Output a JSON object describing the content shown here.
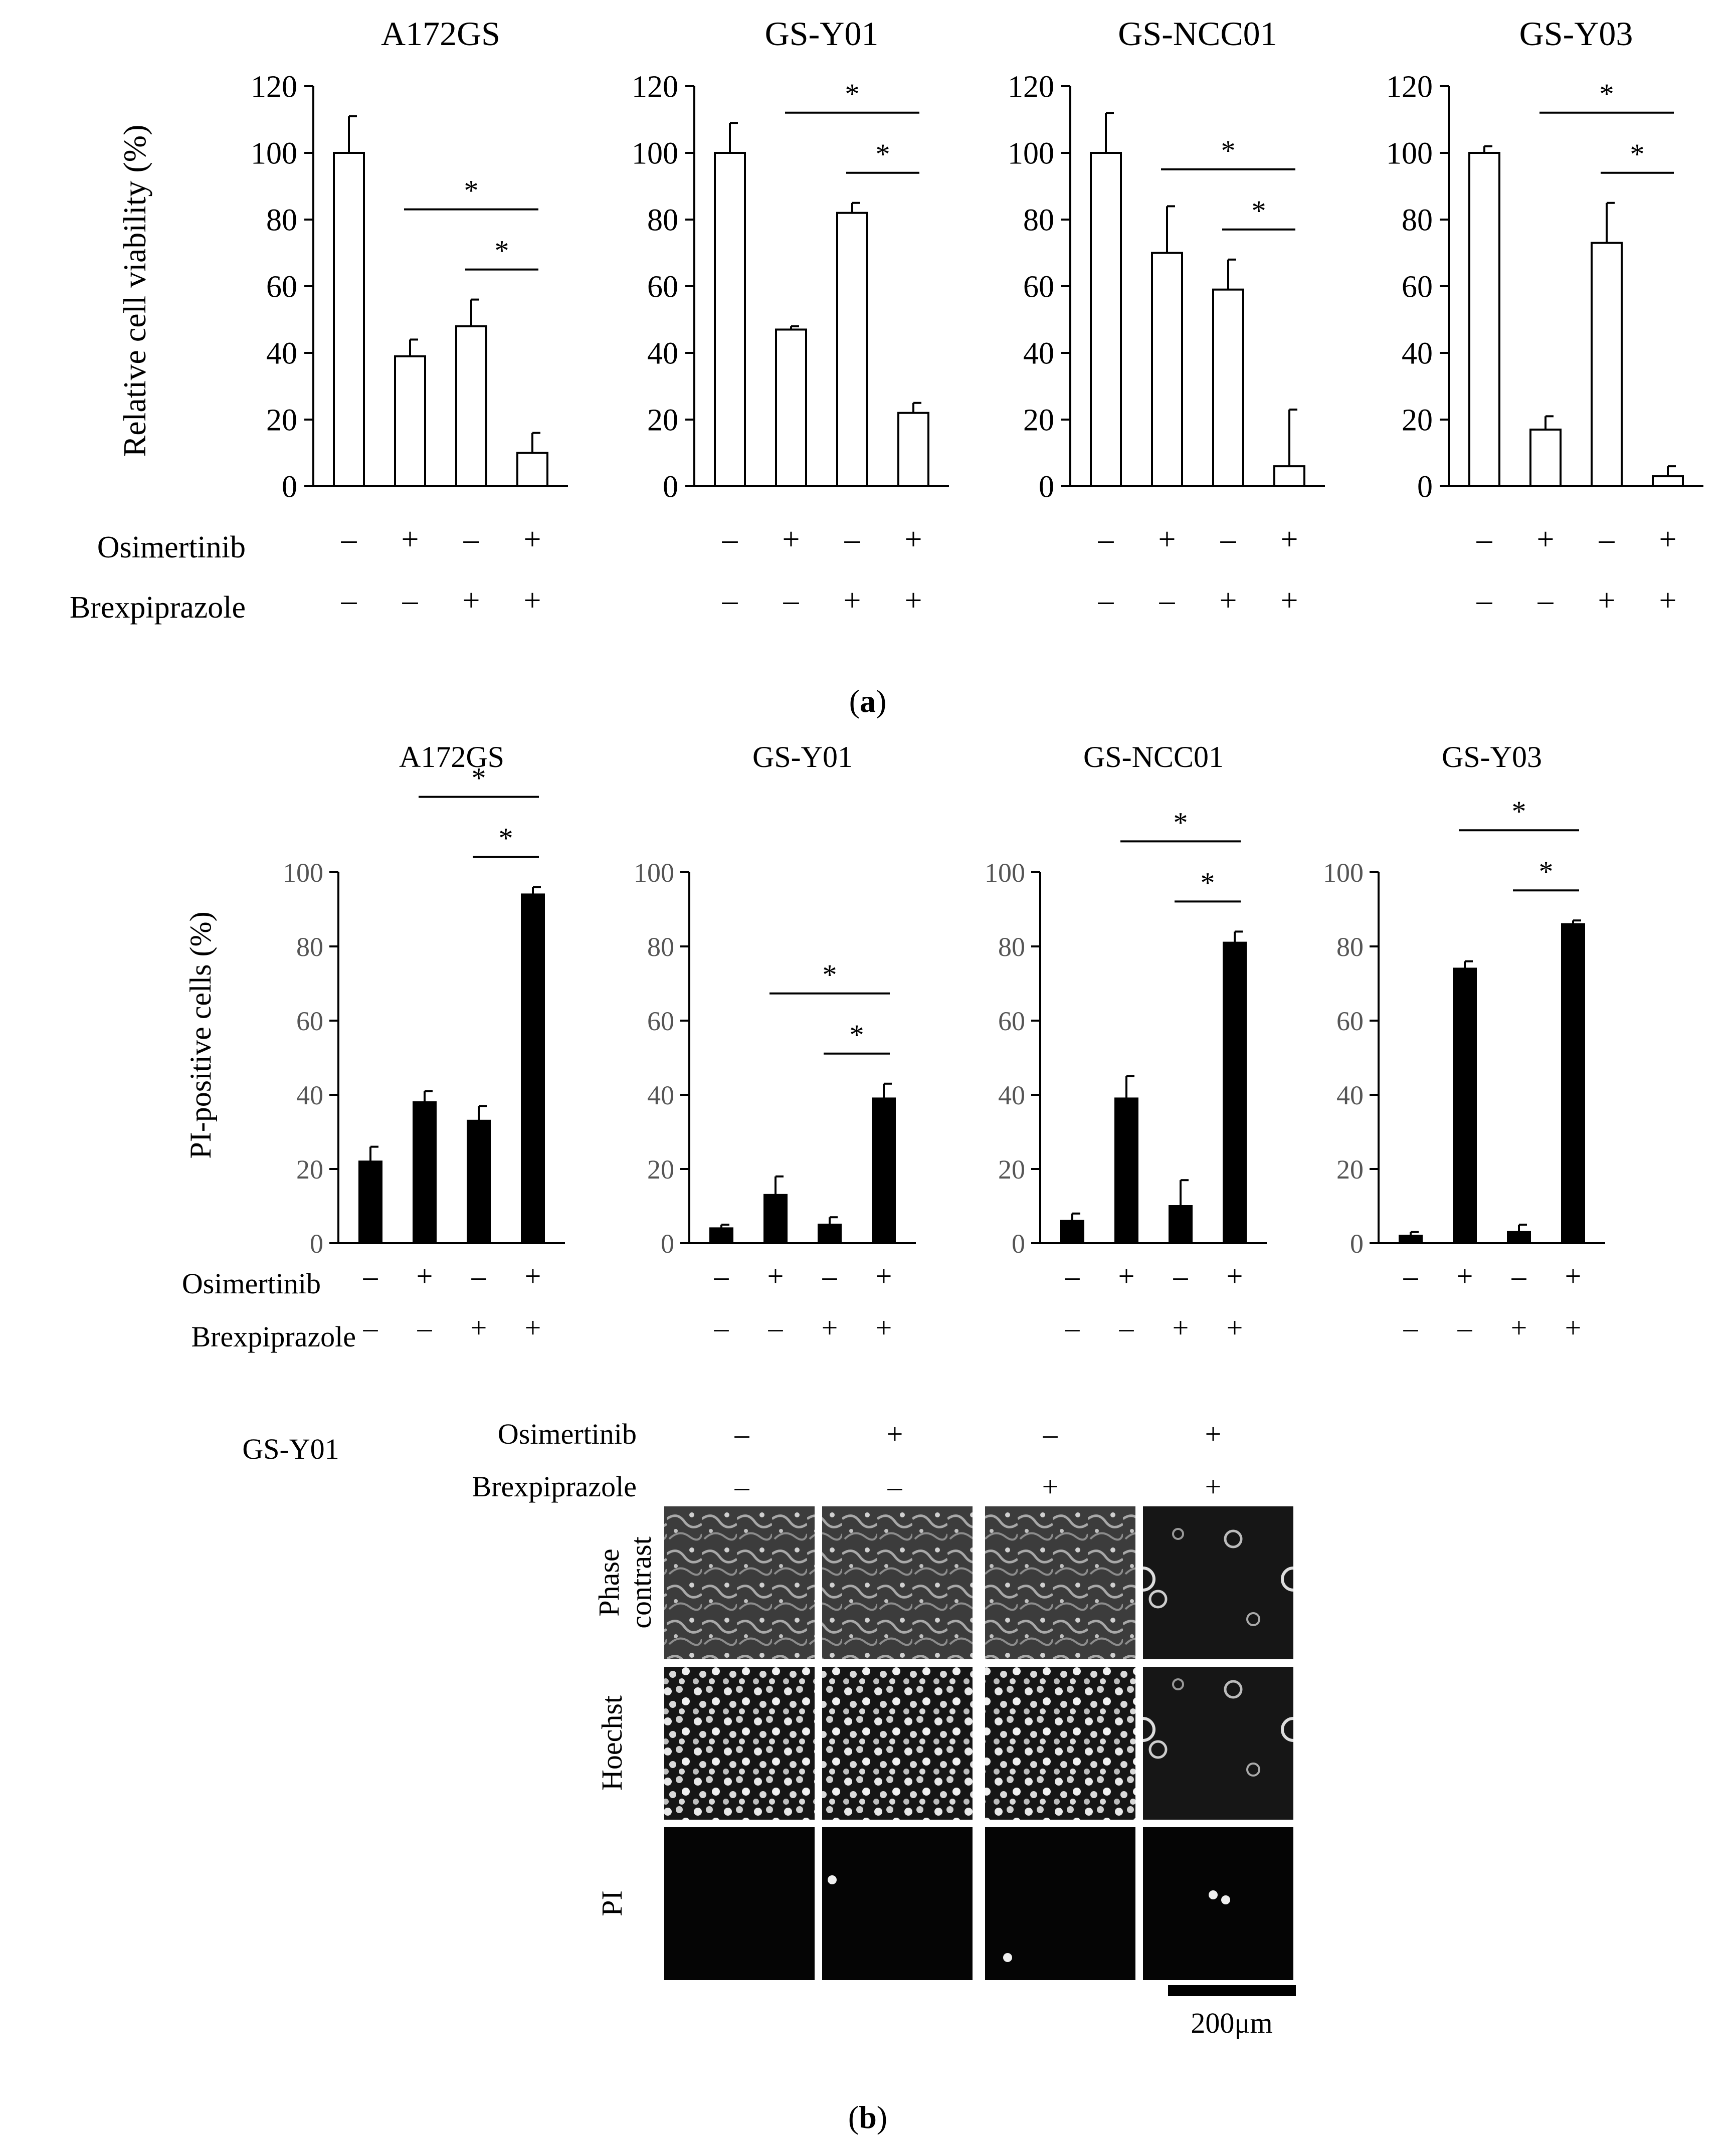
{
  "panel_a": {
    "label": "a",
    "ylabel": "Relative cell viability (%)",
    "yticks": [
      "0",
      "20",
      "40",
      "60",
      "80",
      "100",
      "120"
    ],
    "row_labels": [
      "Osimertinib",
      "Brexpiprazole"
    ]
  },
  "panel_b": {
    "label": "b",
    "ylabel": "PI-positive cells (%)",
    "yticks": [
      "0",
      "20",
      "40",
      "60",
      "80",
      "100"
    ],
    "row_labels": [
      "Osimertinib",
      "Brexpiprazole"
    ]
  },
  "micro": {
    "cell_line": "GS-Y01",
    "row_labels": [
      "Osimertinib",
      "Brexpiprazole"
    ],
    "osimertinib": [
      "–",
      "+",
      "–",
      "+"
    ],
    "brexpiprazole": [
      "–",
      "–",
      "+",
      "+"
    ],
    "channels": [
      "Phase contrast",
      "Hoechst",
      "PI"
    ],
    "scale_bar": "200μm"
  },
  "chart_data": [
    {
      "type": "bar",
      "panel": "a",
      "title": "A172GS",
      "ylabel": "Relative cell viability (%)",
      "ylim": [
        0,
        120
      ],
      "osimertinib": [
        "–",
        "+",
        "–",
        "+"
      ],
      "brexpiprazole": [
        "–",
        "–",
        "+",
        "+"
      ],
      "values": [
        100,
        39,
        48,
        10
      ],
      "errors": [
        11,
        5,
        8,
        6
      ],
      "significance": [
        {
          "from": 1,
          "to": 3,
          "label": "*"
        },
        {
          "from": 2,
          "to": 3,
          "label": "*"
        }
      ]
    },
    {
      "type": "bar",
      "panel": "a",
      "title": "GS-Y01",
      "ylim": [
        0,
        120
      ],
      "osimertinib": [
        "–",
        "+",
        "–",
        "+"
      ],
      "brexpiprazole": [
        "–",
        "–",
        "+",
        "+"
      ],
      "values": [
        100,
        47,
        82,
        22
      ],
      "errors": [
        9,
        1,
        3,
        3
      ],
      "significance": [
        {
          "from": 1,
          "to": 3,
          "label": "*"
        },
        {
          "from": 2,
          "to": 3,
          "label": "*"
        }
      ]
    },
    {
      "type": "bar",
      "panel": "a",
      "title": "GS-NCC01",
      "ylim": [
        0,
        120
      ],
      "osimertinib": [
        "–",
        "+",
        "–",
        "+"
      ],
      "brexpiprazole": [
        "–",
        "–",
        "+",
        "+"
      ],
      "values": [
        100,
        70,
        59,
        6
      ],
      "errors": [
        12,
        14,
        9,
        17
      ],
      "significance": [
        {
          "from": 1,
          "to": 3,
          "label": "*"
        },
        {
          "from": 2,
          "to": 3,
          "label": "*"
        }
      ]
    },
    {
      "type": "bar",
      "panel": "a",
      "title": "GS-Y03",
      "ylim": [
        0,
        120
      ],
      "osimertinib": [
        "–",
        "+",
        "–",
        "+"
      ],
      "brexpiprazole": [
        "–",
        "–",
        "+",
        "+"
      ],
      "values": [
        100,
        17,
        73,
        3
      ],
      "errors": [
        2,
        4,
        12,
        3
      ],
      "significance": [
        {
          "from": 1,
          "to": 3,
          "label": "*"
        },
        {
          "from": 2,
          "to": 3,
          "label": "*"
        }
      ]
    },
    {
      "type": "bar",
      "panel": "b",
      "title": "A172GS",
      "ylabel": "PI-positive cells (%)",
      "ylim": [
        0,
        100
      ],
      "osimertinib": [
        "–",
        "+",
        "–",
        "+"
      ],
      "brexpiprazole": [
        "–",
        "–",
        "+",
        "+"
      ],
      "values": [
        22,
        38,
        33,
        94
      ],
      "errors": [
        4,
        3,
        4,
        2
      ],
      "significance": [
        {
          "from": 1,
          "to": 3,
          "label": "*"
        },
        {
          "from": 2,
          "to": 3,
          "label": "*"
        }
      ]
    },
    {
      "type": "bar",
      "panel": "b",
      "title": "GS-Y01",
      "ylim": [
        0,
        100
      ],
      "osimertinib": [
        "–",
        "+",
        "–",
        "+"
      ],
      "brexpiprazole": [
        "–",
        "–",
        "+",
        "+"
      ],
      "values": [
        4,
        13,
        5,
        39
      ],
      "errors": [
        1,
        5,
        2,
        4
      ],
      "significance": [
        {
          "from": 1,
          "to": 3,
          "label": "*"
        },
        {
          "from": 2,
          "to": 3,
          "label": "*"
        }
      ]
    },
    {
      "type": "bar",
      "panel": "b",
      "title": "GS-NCC01",
      "ylim": [
        0,
        100
      ],
      "osimertinib": [
        "–",
        "+",
        "–",
        "+"
      ],
      "brexpiprazole": [
        "–",
        "–",
        "+",
        "+"
      ],
      "values": [
        6,
        39,
        10,
        81
      ],
      "errors": [
        2,
        6,
        7,
        3
      ],
      "significance": [
        {
          "from": 1,
          "to": 3,
          "label": "*"
        },
        {
          "from": 2,
          "to": 3,
          "label": "*"
        }
      ]
    },
    {
      "type": "bar",
      "panel": "b",
      "title": "GS-Y03",
      "ylim": [
        0,
        100
      ],
      "osimertinib": [
        "–",
        "+",
        "–",
        "+"
      ],
      "brexpiprazole": [
        "–",
        "–",
        "+",
        "+"
      ],
      "values": [
        2,
        74,
        3,
        86
      ],
      "errors": [
        1,
        2,
        2,
        1
      ],
      "significance": [
        {
          "from": 1,
          "to": 3,
          "label": "*"
        },
        {
          "from": 2,
          "to": 3,
          "label": "*"
        }
      ]
    }
  ]
}
